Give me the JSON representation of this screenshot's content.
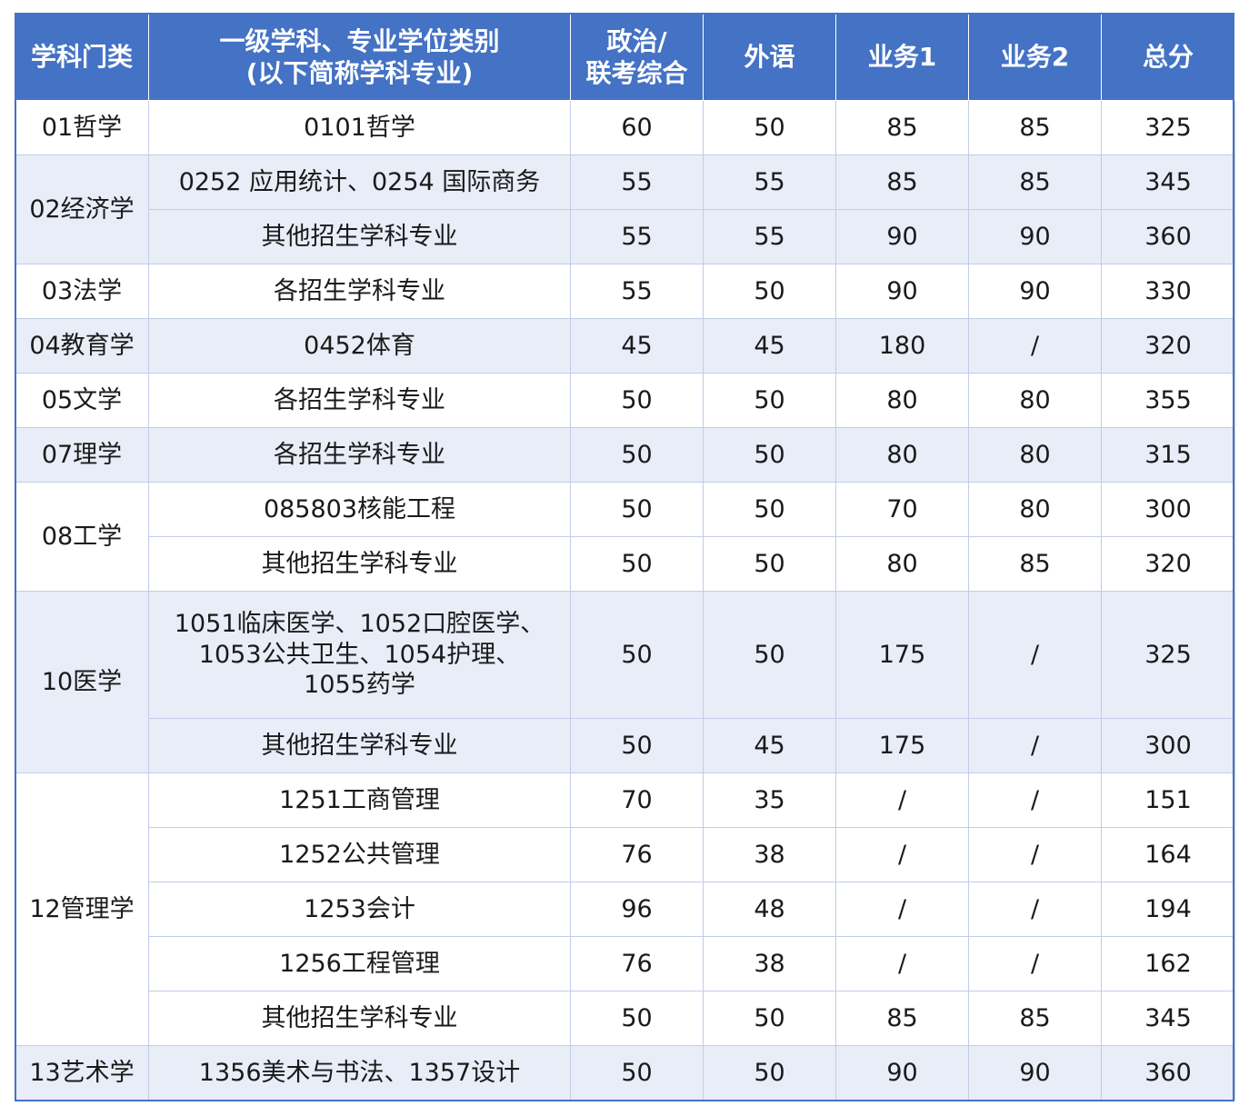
{
  "header": {
    "category": "学科门类",
    "major_line1": "一级学科、专业学位类别",
    "major_line2": "(以下简称学科专业)",
    "politics_line1": "政治/",
    "politics_line2": "联考综合",
    "foreign": "外语",
    "subject1": "业务1",
    "subject2": "业务2",
    "total": "总分"
  },
  "groups": [
    {
      "category": "01哲学",
      "rows": [
        {
          "major": "0101哲学",
          "politics": "60",
          "foreign": "50",
          "s1": "85",
          "s2": "85",
          "total": "325"
        }
      ]
    },
    {
      "category": "02经济学",
      "rows": [
        {
          "major": "0252 应用统计、0254 国际商务",
          "politics": "55",
          "foreign": "55",
          "s1": "85",
          "s2": "85",
          "total": "345"
        },
        {
          "major": "其他招生学科专业",
          "politics": "55",
          "foreign": "55",
          "s1": "90",
          "s2": "90",
          "total": "360"
        }
      ]
    },
    {
      "category": "03法学",
      "rows": [
        {
          "major": "各招生学科专业",
          "politics": "55",
          "foreign": "50",
          "s1": "90",
          "s2": "90",
          "total": "330"
        }
      ]
    },
    {
      "category": "04教育学",
      "rows": [
        {
          "major": "0452体育",
          "politics": "45",
          "foreign": "45",
          "s1": "180",
          "s2": "/",
          "total": "320"
        }
      ]
    },
    {
      "category": "05文学",
      "rows": [
        {
          "major": "各招生学科专业",
          "politics": "50",
          "foreign": "50",
          "s1": "80",
          "s2": "80",
          "total": "355"
        }
      ]
    },
    {
      "category": "07理学",
      "rows": [
        {
          "major": "各招生学科专业",
          "politics": "50",
          "foreign": "50",
          "s1": "80",
          "s2": "80",
          "total": "315"
        }
      ]
    },
    {
      "category": "08工学",
      "rows": [
        {
          "major": "085803核能工程",
          "politics": "50",
          "foreign": "50",
          "s1": "70",
          "s2": "80",
          "total": "300"
        },
        {
          "major": "其他招生学科专业",
          "politics": "50",
          "foreign": "50",
          "s1": "80",
          "s2": "85",
          "total": "320"
        }
      ]
    },
    {
      "category": "10医学",
      "rows": [
        {
          "major_lines": [
            "1051临床医学、1052口腔医学、",
            "1053公共卫生、1054护理、",
            "1055药学"
          ],
          "politics": "50",
          "foreign": "50",
          "s1": "175",
          "s2": "/",
          "total": "325"
        },
        {
          "major": "其他招生学科专业",
          "politics": "50",
          "foreign": "45",
          "s1": "175",
          "s2": "/",
          "total": "300"
        }
      ]
    },
    {
      "category": "12管理学",
      "rows": [
        {
          "major": "1251工商管理",
          "politics": "70",
          "foreign": "35",
          "s1": "/",
          "s2": "/",
          "total": "151"
        },
        {
          "major": "1252公共管理",
          "politics": "76",
          "foreign": "38",
          "s1": "/",
          "s2": "/",
          "total": "164"
        },
        {
          "major": "1253会计",
          "politics": "96",
          "foreign": "48",
          "s1": "/",
          "s2": "/",
          "total": "194"
        },
        {
          "major": "1256工程管理",
          "politics": "76",
          "foreign": "38",
          "s1": "/",
          "s2": "/",
          "total": "162"
        },
        {
          "major": "其他招生学科专业",
          "politics": "50",
          "foreign": "50",
          "s1": "85",
          "s2": "85",
          "total": "345"
        }
      ]
    },
    {
      "category": "13艺术学",
      "rows": [
        {
          "major": "1356美术与书法、1357设计",
          "politics": "50",
          "foreign": "50",
          "s1": "90",
          "s2": "90",
          "total": "360"
        }
      ]
    }
  ]
}
